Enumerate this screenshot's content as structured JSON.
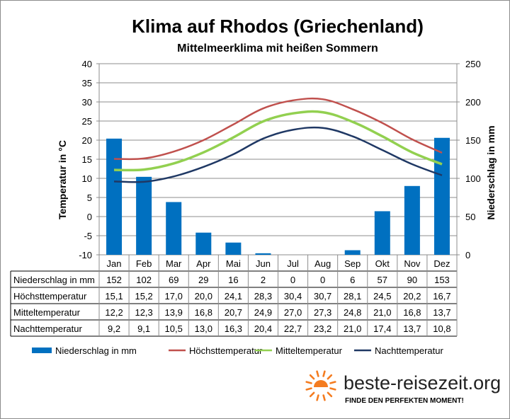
{
  "chart_data": {
    "type": "bar",
    "title": "Klima auf Rhodos (Griechenland)",
    "subtitle": "Mittelmeerklima mit heißen Sommern",
    "ylabel_left": "Temperatur in °C",
    "ylabel_right": "Niederschlag in mm",
    "categories": [
      "Jan",
      "Feb",
      "Mar",
      "Apr",
      "Mai",
      "Jun",
      "Jul",
      "Aug",
      "Sep",
      "Okt",
      "Nov",
      "Dez"
    ],
    "ylim_left": [
      -10,
      40
    ],
    "ylim_right": [
      0,
      250
    ],
    "yticks_left": [
      "40",
      "35",
      "30",
      "25",
      "20",
      "15",
      "10",
      "5",
      "0",
      "-5",
      "-10"
    ],
    "yticks_right": [
      "250",
      "200",
      "150",
      "100",
      "50",
      "0"
    ],
    "grid": true,
    "legend_position": "bottom",
    "bar_series": {
      "name": "Niederschlag in mm",
      "axis": "right",
      "color": "#0070c0",
      "values": [
        152,
        102,
        69,
        29,
        16,
        2,
        0,
        0,
        6,
        57,
        90,
        153
      ]
    },
    "line_series": [
      {
        "name": "Höchsttemperatur",
        "axis": "left",
        "color": "#c0504d",
        "values": [
          15.1,
          15.2,
          17.0,
          20.0,
          24.1,
          28.3,
          30.4,
          30.7,
          28.1,
          24.5,
          20.2,
          16.7
        ]
      },
      {
        "name": "Mitteltemperatur",
        "axis": "left",
        "color": "#92d050",
        "values": [
          12.2,
          12.3,
          13.9,
          16.8,
          20.7,
          24.9,
          27.0,
          27.3,
          24.8,
          21.0,
          16.8,
          13.7
        ]
      },
      {
        "name": "Nachttemperatur",
        "axis": "left",
        "color": "#1f3864",
        "values": [
          9.2,
          9.1,
          10.5,
          13.0,
          16.3,
          20.4,
          22.7,
          23.2,
          21.0,
          17.4,
          13.7,
          10.8
        ]
      }
    ],
    "table": {
      "rows": [
        {
          "label": "Niederschlag in mm",
          "cells": [
            "152",
            "102",
            "69",
            "29",
            "16",
            "2",
            "0",
            "0",
            "6",
            "57",
            "90",
            "153"
          ]
        },
        {
          "label": "Höchsttemperatur",
          "cells": [
            "15,1",
            "15,2",
            "17,0",
            "20,0",
            "24,1",
            "28,3",
            "30,4",
            "30,7",
            "28,1",
            "24,5",
            "20,2",
            "16,7"
          ]
        },
        {
          "label": "Mitteltemperatur",
          "cells": [
            "12,2",
            "12,3",
            "13,9",
            "16,8",
            "20,7",
            "24,9",
            "27,0",
            "27,3",
            "24,8",
            "21,0",
            "16,8",
            "13,7"
          ]
        },
        {
          "label": "Nachttemperatur",
          "cells": [
            "9,2",
            "9,1",
            "10,5",
            "13,0",
            "16,3",
            "20,4",
            "22,7",
            "23,2",
            "21,0",
            "17,4",
            "13,7",
            "10,8"
          ]
        }
      ]
    },
    "legend": [
      "Niederschlag in mm",
      "Höchsttemperatur",
      "Mitteltemperatur",
      "Nachttemperatur"
    ]
  },
  "branding": {
    "site": "beste-reisezeit.org",
    "slogan": "FINDE DEN PERFEKTEN MOMENT!",
    "logo_icon": "sun-icon",
    "logo_color": "#f47c20"
  }
}
